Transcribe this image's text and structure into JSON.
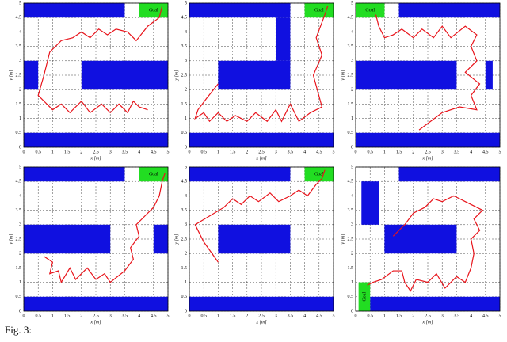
{
  "chart_data": [
    {
      "type": "line",
      "xlabel": "x [m]",
      "ylabel": "y [m]",
      "xlim": [
        0,
        5
      ],
      "ylim": [
        0,
        5
      ],
      "xticks": [
        0,
        0.5,
        1,
        1.5,
        2,
        2.5,
        3,
        3.5,
        4,
        4.5,
        5
      ],
      "yticks": [
        0,
        0.5,
        1,
        1.5,
        2,
        2.5,
        3,
        3.5,
        4,
        4.5,
        5
      ],
      "grid": true,
      "obstacle_color": "#1010e0",
      "obstacles": [
        [
          0,
          4.5,
          3.5,
          5
        ],
        [
          0,
          2,
          0.5,
          3
        ],
        [
          2,
          2,
          5,
          3
        ],
        [
          0,
          0,
          5,
          0.5
        ]
      ],
      "goal_color": "#22dd22",
      "goal": [
        4,
        4.5,
        5,
        5
      ],
      "goal_label": "Goal",
      "x": [
        4.3,
        4.0,
        3.8,
        3.6,
        3.3,
        3.0,
        2.7,
        2.3,
        2.0,
        1.6,
        1.3,
        1.0,
        0.7,
        0.5,
        0.7,
        0.9,
        1.3,
        1.7,
        2.0,
        2.3,
        2.6,
        2.9,
        3.2,
        3.6,
        3.9,
        4.3,
        4.7,
        4.8
      ],
      "series": [
        {
          "color": "#e8141b",
          "values": [
            1.3,
            1.4,
            1.6,
            1.2,
            1.5,
            1.2,
            1.5,
            1.2,
            1.6,
            1.2,
            1.5,
            1.3,
            1.6,
            1.8,
            2.5,
            3.3,
            3.7,
            3.8,
            4.0,
            3.8,
            4.1,
            3.9,
            4.1,
            4.0,
            3.7,
            4.2,
            4.5,
            4.9
          ]
        }
      ]
    },
    {
      "type": "line",
      "xlabel": "x [m]",
      "ylabel": "y [m]",
      "xlim": [
        0,
        5
      ],
      "ylim": [
        0,
        5
      ],
      "xticks": [
        0,
        0.5,
        1,
        1.5,
        2,
        2.5,
        3,
        3.5,
        4,
        4.5,
        5
      ],
      "yticks": [
        0,
        0.5,
        1,
        1.5,
        2,
        2.5,
        3,
        3.5,
        4,
        4.5,
        5
      ],
      "grid": true,
      "obstacle_color": "#1010e0",
      "obstacles": [
        [
          0,
          4.5,
          3.5,
          5
        ],
        [
          3,
          3,
          3.5,
          4.5
        ],
        [
          1,
          2,
          3.5,
          3
        ],
        [
          0,
          0,
          5,
          0.5
        ]
      ],
      "goal_color": "#22dd22",
      "goal": [
        4,
        4.5,
        5,
        5
      ],
      "goal_label": "Goal",
      "x": [
        1.0,
        0.6,
        0.3,
        0.2,
        0.5,
        0.7,
        1.0,
        1.3,
        1.6,
        2.0,
        2.3,
        2.7,
        3.0,
        3.2,
        3.5,
        3.8,
        4.2,
        4.6,
        4.3,
        4.6,
        4.4,
        4.7,
        4.8
      ],
      "series": [
        {
          "color": "#e8141b",
          "values": [
            2.2,
            1.7,
            1.3,
            1.0,
            1.2,
            0.9,
            1.2,
            0.9,
            1.1,
            0.9,
            1.2,
            0.9,
            1.3,
            0.9,
            1.5,
            0.9,
            1.2,
            1.4,
            2.5,
            3.2,
            3.8,
            4.6,
            4.9
          ]
        }
      ]
    },
    {
      "type": "line",
      "xlabel": "x [m]",
      "ylabel": "y [m]",
      "xlim": [
        0,
        5
      ],
      "ylim": [
        0,
        5
      ],
      "xticks": [
        0,
        0.5,
        1,
        1.5,
        2,
        2.5,
        3,
        3.5,
        4,
        4.5,
        5
      ],
      "yticks": [
        0,
        0.5,
        1,
        1.5,
        2,
        2.5,
        3,
        3.5,
        4,
        4.5,
        5
      ],
      "grid": true,
      "obstacle_color": "#1010e0",
      "obstacles": [
        [
          1.5,
          4.5,
          5,
          5
        ],
        [
          0,
          2,
          3.5,
          3
        ],
        [
          4.5,
          2,
          4.75,
          3
        ],
        [
          0,
          0,
          5,
          0.5
        ]
      ],
      "goal_color": "#22dd22",
      "goal": [
        0,
        4.5,
        1,
        5
      ],
      "goal_label": "Goal",
      "x": [
        2.2,
        3.0,
        3.6,
        4.2,
        4.0,
        4.3,
        3.8,
        4.2,
        4.0,
        4.2,
        3.8,
        3.3,
        3.0,
        2.7,
        2.3,
        2.0,
        1.6,
        1.3,
        1.0,
        0.8,
        0.7
      ],
      "series": [
        {
          "color": "#e8141b",
          "values": [
            0.6,
            1.2,
            1.4,
            1.3,
            1.8,
            2.2,
            2.6,
            3.0,
            3.5,
            3.9,
            4.2,
            3.8,
            4.2,
            3.8,
            4.1,
            3.8,
            4.1,
            3.9,
            3.8,
            4.2,
            4.6
          ]
        }
      ]
    },
    {
      "type": "line",
      "xlabel": "x [m]",
      "ylabel": "y [m]",
      "xlim": [
        0,
        5
      ],
      "ylim": [
        0,
        5
      ],
      "xticks": [
        0,
        0.5,
        1,
        1.5,
        2,
        2.5,
        3,
        3.5,
        4,
        4.5,
        5
      ],
      "yticks": [
        0,
        0.5,
        1,
        1.5,
        2,
        2.5,
        3,
        3.5,
        4,
        4.5,
        5
      ],
      "grid": true,
      "obstacle_color": "#1010e0",
      "obstacles": [
        [
          0,
          4.5,
          3.5,
          5
        ],
        [
          0,
          2,
          3,
          3
        ],
        [
          4.5,
          2,
          5,
          3
        ],
        [
          0,
          0,
          5,
          0.5
        ]
      ],
      "goal_color": "#22dd22",
      "goal": [
        4,
        4.5,
        5,
        5
      ],
      "goal_label": "Goal",
      "x": [
        0.7,
        1.0,
        0.9,
        1.2,
        1.3,
        1.6,
        1.8,
        2.2,
        2.5,
        2.8,
        3.0,
        3.5,
        3.8,
        3.7,
        4.0,
        3.9,
        4.2,
        4.5,
        4.7,
        4.8,
        4.9
      ],
      "series": [
        {
          "color": "#e8141b",
          "values": [
            1.9,
            1.7,
            1.3,
            1.4,
            1.0,
            1.5,
            1.1,
            1.5,
            1.1,
            1.3,
            1.0,
            1.4,
            1.8,
            2.2,
            2.6,
            3.0,
            3.3,
            3.6,
            4.0,
            4.5,
            4.8
          ]
        }
      ]
    },
    {
      "type": "line",
      "xlabel": "x [m]",
      "ylabel": "y [m]",
      "xlim": [
        0,
        5
      ],
      "ylim": [
        0,
        5
      ],
      "xticks": [
        0,
        0.5,
        1,
        1.5,
        2,
        2.5,
        3,
        3.5,
        4,
        4.5,
        5
      ],
      "yticks": [
        0,
        0.5,
        1,
        1.5,
        2,
        2.5,
        3,
        3.5,
        4,
        4.5,
        5
      ],
      "grid": true,
      "obstacle_color": "#1010e0",
      "obstacles": [
        [
          0,
          4.5,
          3.5,
          5
        ],
        [
          1,
          2,
          3.5,
          3
        ],
        [
          0,
          0,
          5,
          0.5
        ]
      ],
      "goal_color": "#22dd22",
      "goal": [
        4,
        4.5,
        5,
        5
      ],
      "goal_label": "Goal",
      "x": [
        1.0,
        0.5,
        0.2,
        0.7,
        1.2,
        1.5,
        1.8,
        2.1,
        2.4,
        2.8,
        3.1,
        3.5,
        3.8,
        4.1,
        4.4,
        4.6,
        4.7
      ],
      "series": [
        {
          "color": "#e8141b",
          "values": [
            1.7,
            2.4,
            3.0,
            3.3,
            3.6,
            3.9,
            3.7,
            4.0,
            3.8,
            4.1,
            3.8,
            4.0,
            4.2,
            4.0,
            4.4,
            4.6,
            4.9
          ]
        }
      ]
    },
    {
      "type": "line",
      "xlabel": "x [m]",
      "ylabel": "y [m]",
      "xlim": [
        0,
        5
      ],
      "ylim": [
        0,
        5
      ],
      "xticks": [
        0,
        0.5,
        1,
        1.5,
        2,
        2.5,
        3,
        3.5,
        4,
        4.5,
        5
      ],
      "yticks": [
        0,
        0.5,
        1,
        1.5,
        2,
        2.5,
        3,
        3.5,
        4,
        4.5,
        5
      ],
      "grid": true,
      "obstacle_color": "#1010e0",
      "obstacles": [
        [
          1.5,
          4.5,
          5,
          5
        ],
        [
          0.2,
          3,
          0.8,
          4.5
        ],
        [
          1,
          2,
          3.5,
          3
        ],
        [
          0.5,
          0,
          5,
          0.5
        ]
      ],
      "goal_color": "#22dd22",
      "goal": [
        0.1,
        0,
        0.5,
        1
      ],
      "goal_label": "Goal",
      "x": [
        0.4,
        0.6,
        0.9,
        1.3,
        1.6,
        1.7,
        1.9,
        2.1,
        2.5,
        2.8,
        3.1,
        3.5,
        3.8,
        4.0,
        4.1,
        4.0,
        4.3,
        4.1,
        4.4,
        4.0,
        3.8,
        3.4,
        3.0,
        2.7,
        2.4,
        2.0,
        1.7,
        1.3
      ],
      "series": [
        {
          "color": "#e8141b",
          "values": [
            0.9,
            1.0,
            1.1,
            1.4,
            1.4,
            1.0,
            0.7,
            1.1,
            1.0,
            1.3,
            0.8,
            1.2,
            1.0,
            1.5,
            2.0,
            2.5,
            2.8,
            3.2,
            3.5,
            3.7,
            3.8,
            4.0,
            3.8,
            3.9,
            3.6,
            3.4,
            3.0,
            2.6
          ]
        }
      ]
    }
  ],
  "caption": "Fig. 3:"
}
